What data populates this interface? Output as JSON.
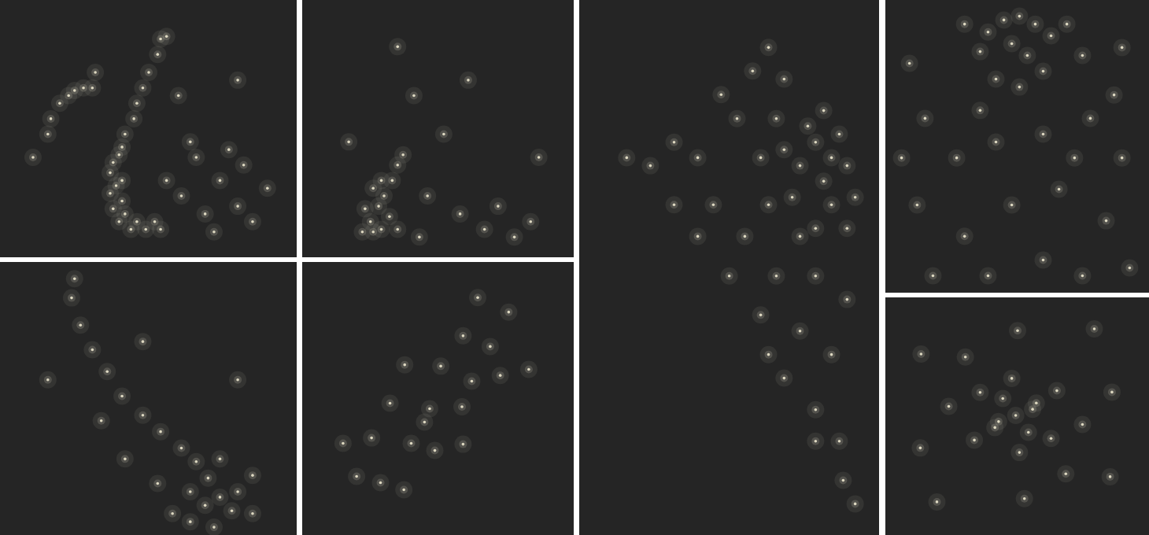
{
  "chart_data": [
    {
      "type": "scatter",
      "color": "#e6e0c8",
      "tick_labels": false,
      "xlim": [
        0,
        100
      ],
      "ylim": [
        0,
        100
      ],
      "x": [
        40,
        37,
        37,
        38,
        40,
        44,
        49,
        54,
        38,
        41,
        42,
        45,
        46,
        48,
        50,
        53,
        54,
        56,
        41,
        41,
        42,
        46,
        52,
        39,
        23,
        25,
        28,
        31,
        20,
        17,
        16,
        66,
        74,
        80,
        85,
        69,
        61,
        77,
        90,
        64,
        72,
        56,
        82,
        60,
        32,
        80,
        11
      ],
      "y": [
        40,
        33,
        25,
        19,
        14,
        11,
        11,
        11,
        37,
        43,
        48,
        54,
        60,
        66,
        72,
        79,
        85,
        86,
        30,
        22,
        17,
        14,
        14,
        28,
        63,
        65,
        66,
        66,
        60,
        54,
        48,
        39,
        30,
        20,
        14,
        17,
        24,
        42,
        27,
        45,
        10,
        30,
        36,
        63,
        72,
        69,
        39
      ]
    },
    {
      "type": "scatter",
      "color": "#e6e0c8",
      "tick_labels": false,
      "xlim": [
        0,
        100
      ],
      "ylim": [
        0,
        100
      ],
      "x": [
        26,
        28,
        25,
        29,
        32,
        23,
        30,
        33,
        35,
        37,
        29,
        26,
        35,
        22,
        58,
        72,
        84,
        67,
        46,
        41,
        35,
        52,
        17,
        87,
        61,
        78,
        43
      ],
      "y": [
        27,
        20,
        14,
        11,
        16,
        19,
        24,
        30,
        36,
        40,
        30,
        10,
        11,
        10,
        17,
        20,
        14,
        11,
        24,
        63,
        82,
        48,
        45,
        39,
        69,
        8,
        8
      ]
    },
    {
      "type": "scatter",
      "color": "#e6e0c8",
      "tick_labels": false,
      "xlim": [
        0,
        100
      ],
      "ylim": [
        0,
        100
      ],
      "x": [
        25,
        24,
        27,
        31,
        36,
        41,
        48,
        54,
        61,
        66,
        70,
        74,
        78,
        69,
        64,
        80,
        85,
        58,
        53,
        42,
        34,
        74,
        85,
        16,
        80,
        48,
        64,
        72
      ],
      "y": [
        94,
        87,
        77,
        68,
        60,
        51,
        44,
        38,
        32,
        27,
        21,
        14,
        9,
        11,
        16,
        16,
        8,
        8,
        19,
        28,
        42,
        28,
        22,
        57,
        57,
        71,
        5,
        3
      ]
    },
    {
      "type": "scatter",
      "color": "#e6e0c8",
      "tick_labels": false,
      "xlim": [
        0,
        100
      ],
      "ylim": [
        0,
        100
      ],
      "x": [
        64.5,
        69.1,
        83.3,
        50.9,
        58.7,
        32.2,
        40.0,
        37.3,
        14.9,
        19.9,
        37.6,
        59.1,
        75.9,
        62.3,
        46.8,
        72.8,
        59.1,
        48.7,
        25.4,
        28.7,
        44.9
      ],
      "y": [
        87.1,
        69.2,
        60.8,
        62.0,
        47.1,
        48.4,
        33.7,
        16.7,
        33.7,
        21.6,
        62.5,
        33.4,
        81.8,
        56.5,
        46.4,
        58.6,
        73.1,
        31.1,
        35.7,
        19.3,
        41.5
      ]
    },
    {
      "type": "scatter",
      "color": "#e6e0c8",
      "tick_labels": false,
      "xlim": [
        0,
        100
      ],
      "ylim": [
        0,
        100
      ],
      "x": [
        78.7,
        84.0,
        89.2,
        81.4,
        73.5,
        86.6,
        76.1,
        91.9,
        84.0,
        70.9,
        89.2,
        78.7,
        68.2,
        65.6,
        81.4,
        60.4,
        73.5,
        63.0,
        52.5,
        47.2,
        57.7,
        39.4,
        31.5,
        23.6,
        44.6,
        55.1,
        65.6,
        78.7,
        89.2,
        49.9,
        60.4,
        73.5,
        84.0,
        68.2,
        78.7,
        86.6,
        78.7,
        87.9,
        91.9,
        39.4,
        31.5,
        63.0,
        15.7,
        63.0,
        68.2
      ],
      "y": [
        73.5,
        70.6,
        69.1,
        66.2,
        69.1,
        75.0,
        76.5,
        63.2,
        61.8,
        63.2,
        57.4,
        57.4,
        72.1,
        77.9,
        79.4,
        70.6,
        55.9,
        61.8,
        77.9,
        82.4,
        86.8,
        70.6,
        73.5,
        69.1,
        61.8,
        55.9,
        48.5,
        48.5,
        44.1,
        48.5,
        41.2,
        38.2,
        33.8,
        29.4,
        23.5,
        17.6,
        17.6,
        10.3,
        5.9,
        55.9,
        61.8,
        33.8,
        70.6,
        91.2,
        85.3
      ]
    },
    {
      "type": "scatter",
      "color": "#e6e0c8",
      "tick_labels": false,
      "xlim": [
        0,
        100
      ],
      "ylim": [
        0,
        100
      ],
      "x": [
        44.8,
        50.7,
        56.7,
        38.8,
        62.7,
        47.8,
        53.7,
        35.8,
        68.7,
        59.7,
        41.8,
        74.6,
        29.9,
        50.7,
        14.9,
        26.9,
        41.8,
        59.7,
        77.6,
        89.6,
        11.9,
        29.9,
        47.8,
        65.7,
        83.6,
        92.5,
        17.9,
        38.8,
        59.7,
        74.6,
        9.0,
        89.6,
        86.6,
        6.0,
        35.8,
        71.6
      ],
      "y": [
        93.3,
        94.6,
        91.9,
        89.2,
        87.9,
        85.2,
        81.2,
        82.5,
        91.9,
        75.8,
        73.1,
        81.2,
        91.9,
        70.4,
        59.7,
        46.2,
        51.6,
        54.3,
        59.7,
        46.2,
        30.1,
        19.4,
        30.1,
        35.5,
        24.7,
        8.6,
        5.9,
        5.9,
        11.3,
        5.9,
        78.5,
        83.9,
        67.7,
        46.2,
        62.4,
        46.2
      ]
    },
    {
      "type": "scatter",
      "color": "#e6e0c8",
      "tick_labels": false,
      "xlim": [
        0,
        100
      ],
      "ylim": [
        0,
        100
      ],
      "x": [
        49.3,
        44.4,
        54.1,
        41.4,
        57.1,
        35.8,
        62.7,
        47.8,
        50.7,
        33.6,
        64.9,
        13.4,
        79.1,
        85.1,
        19.4,
        23.9,
        74.6,
        30.2,
        68.3,
        52.6,
        50.0,
        13.1,
        85.8,
        42.8,
        55.7
      ],
      "y": [
        50.5,
        57.6,
        43.4,
        45.4,
        55.7,
        60.2,
        40.8,
        66.1,
        34.9,
        40.1,
        60.9,
        76.3,
        86.9,
        24.7,
        14.1,
        54.3,
        46.7,
        75.1,
        25.9,
        15.5,
        86.2,
        36.8,
        60.3,
        47.9,
        53.1
      ]
    }
  ]
}
